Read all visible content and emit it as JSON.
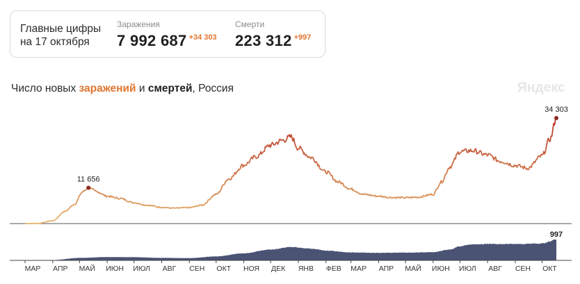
{
  "summary": {
    "title_line1": "Главные цифры",
    "title_line2": "на 17 октября",
    "infections": {
      "label": "Заражения",
      "value": "7 992 687",
      "delta": "+34 303"
    },
    "deaths": {
      "label": "Смерти",
      "value": "223 312",
      "delta": "+997"
    }
  },
  "chart_title": {
    "prefix": "Число новых ",
    "infections_word": "заражений",
    "middle": " и ",
    "deaths_word": "смертей",
    "suffix": ", Россия"
  },
  "brand": "Яндекс",
  "colors": {
    "infections_low": "#e6b46c",
    "infections_high": "#b8392c",
    "deaths_fill": "#4b5375",
    "axis": "#444444",
    "highlight_orange": "#e0752e"
  },
  "chart_data": [
    {
      "type": "line",
      "series": [
        {
          "name": "заражений",
          "x": [
            "2020-03-01",
            "2020-03-15",
            "2020-04-01",
            "2020-04-15",
            "2020-04-25",
            "2020-05-05",
            "2020-05-11",
            "2020-05-20",
            "2020-06-01",
            "2020-06-15",
            "2020-07-01",
            "2020-07-15",
            "2020-08-01",
            "2020-08-15",
            "2020-09-01",
            "2020-09-15",
            "2020-10-01",
            "2020-10-15",
            "2020-11-01",
            "2020-11-15",
            "2020-12-01",
            "2020-12-15",
            "2020-12-24",
            "2021-01-01",
            "2021-01-15",
            "2021-02-01",
            "2021-02-15",
            "2021-03-01",
            "2021-03-15",
            "2021-04-01",
            "2021-04-15",
            "2021-05-01",
            "2021-05-15",
            "2021-06-01",
            "2021-06-10",
            "2021-06-20",
            "2021-07-01",
            "2021-07-15",
            "2021-08-01",
            "2021-08-15",
            "2021-09-01",
            "2021-09-15",
            "2021-10-01",
            "2021-10-10",
            "2021-10-17"
          ],
          "values": [
            0,
            50,
            900,
            4000,
            6200,
            10400,
            11656,
            10400,
            8900,
            8200,
            6800,
            6000,
            5300,
            5000,
            5200,
            6000,
            9500,
            14500,
            19000,
            21800,
            25500,
            27100,
            28200,
            24500,
            21500,
            16800,
            13500,
            11200,
            9500,
            8900,
            8500,
            8400,
            8600,
            9500,
            13500,
            18500,
            23400,
            23700,
            22300,
            20300,
            18900,
            18000,
            22000,
            27500,
            34303
          ]
        }
      ],
      "annotations": [
        {
          "x": "2020-05-11",
          "label": "11 656"
        },
        {
          "x": "2021-10-17",
          "label": "34 303"
        }
      ]
    },
    {
      "type": "area",
      "x": [
        "2020-03-01",
        "2020-04-01",
        "2020-05-01",
        "2020-06-01",
        "2020-07-01",
        "2020-08-01",
        "2020-09-01",
        "2020-10-01",
        "2020-11-01",
        "2020-12-01",
        "2020-12-24",
        "2021-01-15",
        "2021-02-01",
        "2021-03-01",
        "2021-04-01",
        "2021-05-01",
        "2021-06-01",
        "2021-06-20",
        "2021-07-01",
        "2021-07-15",
        "2021-08-01",
        "2021-09-01",
        "2021-10-01",
        "2021-10-17"
      ],
      "values": [
        0,
        15,
        120,
        160,
        155,
        120,
        110,
        190,
        340,
        520,
        640,
        560,
        470,
        380,
        360,
        370,
        390,
        520,
        680,
        760,
        790,
        780,
        810,
        997
      ],
      "annotations": [
        {
          "x": "2021-10-17",
          "label": "997"
        }
      ]
    }
  ],
  "x_axis": {
    "ticks": [
      {
        "date": "2020-03-01",
        "label": "МАР"
      },
      {
        "date": "2020-04-01",
        "label": "АПР"
      },
      {
        "date": "2020-05-01",
        "label": "МАЙ"
      },
      {
        "date": "2020-06-01",
        "label": "ИЮН"
      },
      {
        "date": "2020-07-01",
        "label": "ИЮЛ"
      },
      {
        "date": "2020-08-01",
        "label": "АВГ"
      },
      {
        "date": "2020-09-01",
        "label": "СЕН"
      },
      {
        "date": "2020-10-01",
        "label": "ОКТ"
      },
      {
        "date": "2020-11-01",
        "label": "НОЯ"
      },
      {
        "date": "2020-12-01",
        "label": "ДЕК"
      },
      {
        "date": "2021-01-01",
        "label": "ЯНВ"
      },
      {
        "date": "2021-02-01",
        "label": "ФЕВ"
      },
      {
        "date": "2021-03-01",
        "label": "МАР"
      },
      {
        "date": "2021-04-01",
        "label": "АПР"
      },
      {
        "date": "2021-05-01",
        "label": "МАЙ"
      },
      {
        "date": "2021-06-01",
        "label": "ИЮН"
      },
      {
        "date": "2021-07-01",
        "label": "ИЮЛ"
      },
      {
        "date": "2021-08-01",
        "label": "АВГ"
      },
      {
        "date": "2021-09-01",
        "label": "СЕН"
      },
      {
        "date": "2021-10-01",
        "label": "ОКТ"
      }
    ]
  }
}
